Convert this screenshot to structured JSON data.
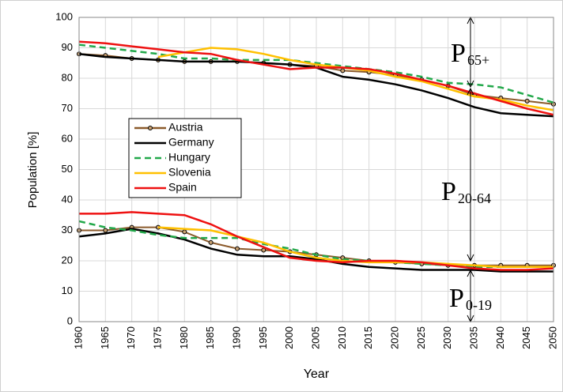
{
  "chart_data": {
    "type": "line",
    "x_label": "Year",
    "y_label": "Population [%]",
    "x": [
      1960,
      1965,
      1970,
      1975,
      1980,
      1985,
      1990,
      1995,
      2000,
      2005,
      2010,
      2015,
      2020,
      2025,
      2030,
      2035,
      2040,
      2045,
      2050
    ],
    "xlim": [
      1960,
      2050
    ],
    "xticks": [
      1960,
      1965,
      1970,
      1975,
      1980,
      1985,
      1990,
      1995,
      2000,
      2005,
      2010,
      2015,
      2020,
      2025,
      2030,
      2035,
      2040,
      2045,
      2050
    ],
    "ylim": [
      0,
      100
    ],
    "yticks": [
      0,
      10,
      20,
      30,
      40,
      50,
      60,
      70,
      80,
      90,
      100
    ],
    "grid": true,
    "series": [
      {
        "name": "Austria",
        "color": "#8b5a2b",
        "style": "markers",
        "values": [
          88,
          87.5,
          86.5,
          86,
          85.5,
          85.5,
          85.5,
          85,
          84.5,
          84,
          82.5,
          82,
          81,
          79.5,
          77.5,
          74.5,
          73.5,
          72.5,
          71.5
        ],
        "values_lower": [
          30,
          30,
          31,
          31,
          29.5,
          26,
          24,
          23.5,
          23,
          22,
          21,
          20,
          19.5,
          19,
          18.5,
          18.5,
          18.5,
          18.5,
          18.5
        ]
      },
      {
        "name": "Germany",
        "color": "#000000",
        "style": "solid",
        "values": [
          88,
          87,
          86.5,
          86,
          85.5,
          85.5,
          85.5,
          85,
          84.5,
          83.5,
          80.5,
          79.5,
          78,
          76,
          73.5,
          70.5,
          68.5,
          68,
          67.5
        ],
        "values_lower": [
          28,
          29,
          30.5,
          29,
          27,
          24,
          22,
          21.5,
          21.5,
          20.5,
          19,
          18,
          17.5,
          17,
          17,
          17,
          16.5,
          16.5,
          16.5
        ]
      },
      {
        "name": "Hungary",
        "color": "#22a84a",
        "style": "dashed",
        "values": [
          91,
          90,
          89,
          88,
          86.5,
          86.5,
          86,
          86,
          86,
          85,
          84,
          83,
          82,
          80.5,
          78.5,
          78,
          77,
          74.5,
          72
        ],
        "values_lower": [
          33,
          31,
          30,
          28.5,
          27.5,
          27.5,
          27.5,
          25.5,
          24,
          22,
          20.5,
          20,
          19.5,
          19,
          18.5,
          18,
          18,
          18,
          18
        ]
      },
      {
        "name": "Slovenia",
        "color": "#ffc000",
        "style": "solid",
        "values": [
          null,
          null,
          null,
          87,
          88.5,
          90,
          89.5,
          88,
          86,
          84.5,
          83.5,
          82.5,
          80.5,
          79,
          76.5,
          74,
          73,
          71,
          69.5
        ],
        "values_lower": [
          null,
          null,
          null,
          31,
          30.5,
          30,
          28,
          26,
          23,
          21,
          20,
          19.5,
          19.5,
          19.5,
          19,
          18.5,
          18,
          18,
          18
        ]
      },
      {
        "name": "Spain",
        "color": "#ee1111",
        "style": "solid",
        "values": [
          92,
          91.5,
          90.5,
          89.5,
          88.5,
          88,
          86,
          84.5,
          83,
          83.5,
          83.5,
          83,
          81.5,
          79.5,
          77.5,
          75,
          72.5,
          70,
          68
        ],
        "values_lower": [
          35.5,
          35.5,
          36,
          35.5,
          35,
          32,
          28,
          24.5,
          21,
          20,
          19.5,
          20,
          20,
          19.5,
          18.5,
          17.5,
          17,
          17,
          17.5
        ]
      }
    ],
    "annotations": [
      {
        "text": "P",
        "sub": "65+"
      },
      {
        "text": "P",
        "sub": "20-64"
      },
      {
        "text": "P",
        "sub": "0-19"
      }
    ]
  }
}
